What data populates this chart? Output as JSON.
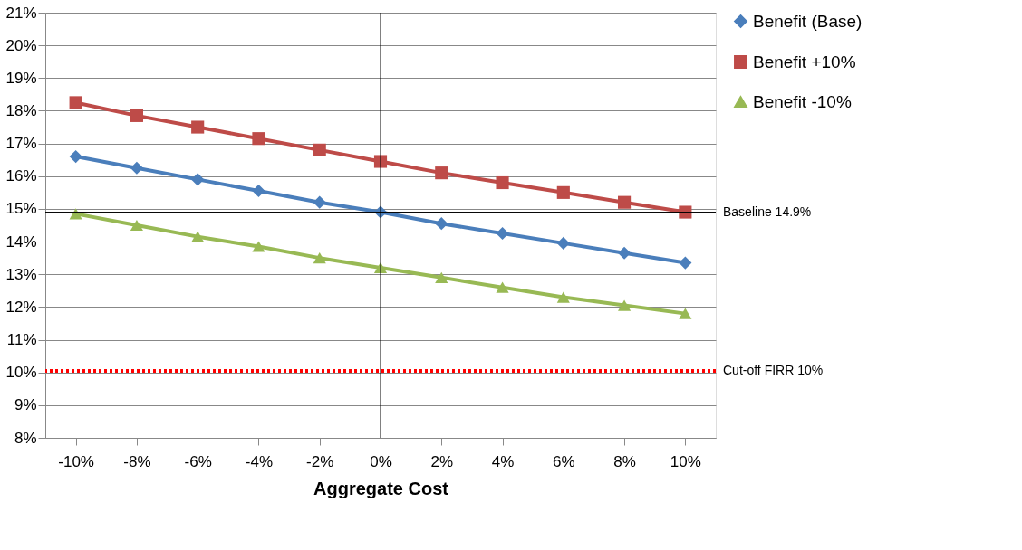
{
  "chart_data": {
    "type": "line",
    "xlabel": "Aggregate Cost",
    "categories": [
      "-10%",
      "-8%",
      "-6%",
      "-4%",
      "-2%",
      "0%",
      "2%",
      "4%",
      "6%",
      "8%",
      "10%"
    ],
    "series": [
      {
        "name": "Benefit (Base)",
        "color": "#4a7ebb",
        "marker": "diamond",
        "values": [
          16.6,
          16.25,
          15.9,
          15.55,
          15.2,
          14.9,
          14.55,
          14.25,
          13.95,
          13.65,
          13.35
        ]
      },
      {
        "name": "Benefit +10%",
        "color": "#be4b48",
        "marker": "square",
        "values": [
          18.25,
          17.85,
          17.5,
          17.15,
          16.8,
          16.45,
          16.1,
          15.8,
          15.5,
          15.2,
          14.9
        ]
      },
      {
        "name": "Benefit -10%",
        "color": "#98b954",
        "marker": "triangle",
        "values": [
          14.85,
          14.5,
          14.15,
          13.85,
          13.5,
          13.2,
          12.9,
          12.6,
          12.3,
          12.05,
          11.8
        ]
      }
    ],
    "ylim": [
      8,
      21
    ],
    "yticks": [
      {
        "value": 8,
        "label": "8%"
      },
      {
        "value": 9,
        "label": "9%"
      },
      {
        "value": 10,
        "label": "10%"
      },
      {
        "value": 11,
        "label": "11%"
      },
      {
        "value": 12,
        "label": "12%"
      },
      {
        "value": 13,
        "label": "13%"
      },
      {
        "value": 14,
        "label": "14%"
      },
      {
        "value": 15,
        "label": "15%"
      },
      {
        "value": 16,
        "label": "16%"
      },
      {
        "value": 17,
        "label": "17%"
      },
      {
        "value": 18,
        "label": "18%"
      },
      {
        "value": 19,
        "label": "19%"
      },
      {
        "value": 20,
        "label": "20%"
      },
      {
        "value": 21,
        "label": "21%"
      }
    ],
    "ref_lines": [
      {
        "axis": "y",
        "value": 14.9,
        "label": "Baseline 14.9%",
        "color": "#000000",
        "line_style": "solid"
      },
      {
        "axis": "y",
        "value": 10.05,
        "label": "Cut-off FIRR 10%",
        "color": "#ff0000",
        "line_style": "dotted"
      },
      {
        "axis": "x",
        "value": "0%",
        "color": "#000000",
        "line_style": "solid"
      }
    ],
    "grid": "y",
    "legend": "top right",
    "line_style": "solid"
  }
}
